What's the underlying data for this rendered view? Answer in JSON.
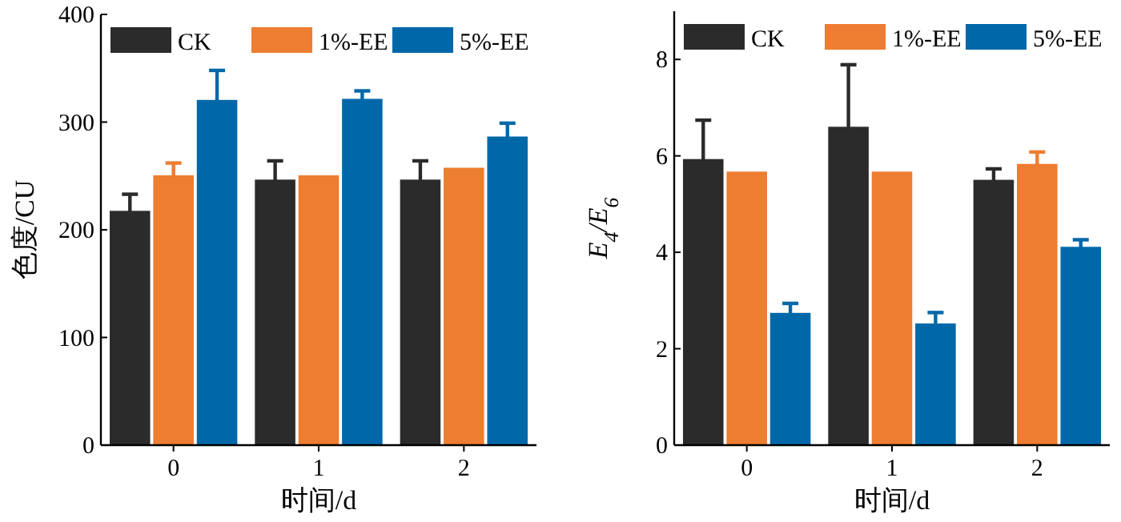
{
  "chart_data": [
    {
      "type": "bar",
      "categories": [
        "0",
        "1",
        "2"
      ],
      "xlabel": "时间/d",
      "ylabel": "色度/CU",
      "ylim": [
        0,
        400
      ],
      "yticks": [
        0,
        100,
        200,
        300,
        400
      ],
      "legend": "top",
      "series": [
        {
          "name": "CK",
          "color": "#2b2b2b",
          "values": [
            217,
            246,
            246
          ],
          "errors": [
            16,
            18,
            18
          ]
        },
        {
          "name": "1%-EE",
          "color": "#ed7d31",
          "values": [
            250,
            250,
            257
          ],
          "errors": [
            12,
            null,
            null
          ]
        },
        {
          "name": "5%-EE",
          "color": "#0068a8",
          "values": [
            320,
            321,
            286
          ],
          "errors": [
            28,
            8,
            13
          ]
        }
      ]
    },
    {
      "type": "bar",
      "categories": [
        "0",
        "1",
        "2"
      ],
      "xlabel": "时间/d",
      "ylabel": "E$_{4}$/E$_{6}$",
      "ylim": [
        0,
        9
      ],
      "yticks": [
        0,
        2,
        4,
        6,
        8
      ],
      "legend": "top",
      "series": [
        {
          "name": "CK",
          "color": "#2b2b2b",
          "values": [
            5.92,
            6.59,
            5.49
          ],
          "errors": [
            0.82,
            1.3,
            0.24
          ]
        },
        {
          "name": "1%-EE",
          "color": "#ed7d31",
          "values": [
            5.66,
            5.66,
            5.82
          ],
          "errors": [
            null,
            null,
            0.26
          ]
        },
        {
          "name": "5%-EE",
          "color": "#0068a8",
          "values": [
            2.73,
            2.51,
            4.1
          ],
          "errors": [
            0.21,
            0.24,
            0.16
          ]
        }
      ]
    }
  ]
}
